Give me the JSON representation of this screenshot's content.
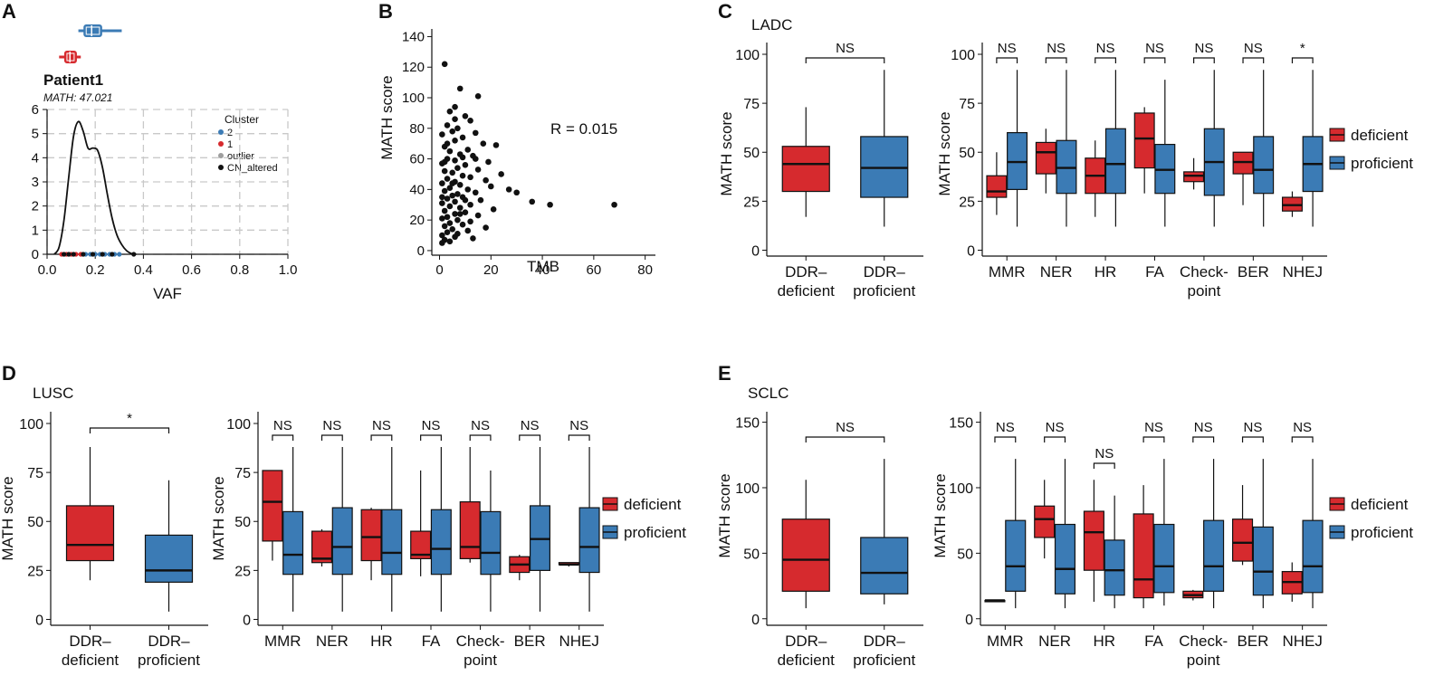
{
  "colors": {
    "deficient": "#d62a2e",
    "proficient": "#3b7bb5",
    "black": "#000000",
    "grid": "#c9c9c9",
    "outlier": "#9e9e9e"
  },
  "chart_data": [
    {
      "id": "A",
      "type": "line",
      "panel_label": "A",
      "title": "Patient1",
      "subtitle": "MATH: 47.021",
      "xlabel": "VAF",
      "ylabel": "",
      "xlim": [
        0,
        1
      ],
      "ylim": [
        0,
        6
      ],
      "xticks": [
        "0.0",
        "0.2",
        "0.4",
        "0.6",
        "0.8",
        "1.0"
      ],
      "yticks": [
        "0",
        "1",
        "2",
        "3",
        "4",
        "5",
        "6"
      ],
      "density": {
        "x": [
          0.03,
          0.05,
          0.07,
          0.09,
          0.11,
          0.13,
          0.15,
          0.17,
          0.19,
          0.21,
          0.23,
          0.25,
          0.27,
          0.29,
          0.31,
          0.33,
          0.35,
          0.37
        ],
        "y": [
          0.0,
          0.3,
          1.4,
          3.2,
          4.9,
          5.5,
          5.1,
          4.4,
          4.4,
          4.3,
          3.6,
          2.5,
          1.5,
          0.8,
          0.4,
          0.15,
          0.03,
          0.0
        ]
      },
      "vaf_points": {
        "cluster2": [
          0.16,
          0.18,
          0.2,
          0.22,
          0.24,
          0.26,
          0.28,
          0.3
        ],
        "cluster1": [
          0.06,
          0.08,
          0.1,
          0.12,
          0.14
        ],
        "cn_altered": [
          0.07,
          0.09,
          0.11,
          0.15,
          0.19,
          0.23,
          0.27,
          0.36
        ]
      },
      "cluster_boxes": [
        {
          "name": "2",
          "min": 0.13,
          "q1": 0.155,
          "median": 0.185,
          "q3": 0.225,
          "max": 0.31
        },
        {
          "name": "1",
          "min": 0.05,
          "q1": 0.075,
          "median": 0.095,
          "q3": 0.12,
          "max": 0.14
        }
      ],
      "legend": {
        "title": "Cluster",
        "entries": [
          "2",
          "1",
          "outlier",
          "CN_altered"
        ]
      }
    },
    {
      "id": "B",
      "type": "scatter",
      "panel_label": "B",
      "xlabel": "TMB",
      "ylabel": "MATH score",
      "xlim": [
        -3,
        84
      ],
      "ylim": [
        -3,
        145
      ],
      "xticks": [
        0,
        20,
        40,
        60,
        80
      ],
      "yticks": [
        0,
        20,
        40,
        60,
        80,
        100,
        120,
        140
      ],
      "annotation": "R = 0.015",
      "points": [
        [
          2,
          122
        ],
        [
          8,
          106
        ],
        [
          15,
          101
        ],
        [
          6,
          94
        ],
        [
          4,
          91
        ],
        [
          10,
          88
        ],
        [
          12,
          85
        ],
        [
          3,
          82
        ],
        [
          7,
          80
        ],
        [
          5,
          78
        ],
        [
          14,
          77
        ],
        [
          1,
          76
        ],
        [
          9,
          74
        ],
        [
          6,
          72
        ],
        [
          17,
          70
        ],
        [
          22,
          69
        ],
        [
          2,
          68
        ],
        [
          11,
          66
        ],
        [
          4,
          65
        ],
        [
          8,
          63
        ],
        [
          13,
          62
        ],
        [
          3,
          60
        ],
        [
          6,
          59
        ],
        [
          19,
          58
        ],
        [
          1,
          57
        ],
        [
          10,
          56
        ],
        [
          7,
          54
        ],
        [
          15,
          53
        ],
        [
          2,
          52
        ],
        [
          5,
          51
        ],
        [
          24,
          50
        ],
        [
          9,
          49
        ],
        [
          12,
          48
        ],
        [
          3,
          47
        ],
        [
          18,
          46
        ],
        [
          6,
          45
        ],
        [
          1,
          44
        ],
        [
          8,
          43
        ],
        [
          20,
          42
        ],
        [
          4,
          41
        ],
        [
          11,
          40
        ],
        [
          27,
          40
        ],
        [
          2,
          39
        ],
        [
          14,
          38
        ],
        [
          7,
          37
        ],
        [
          5,
          36
        ],
        [
          30,
          38
        ],
        [
          9,
          35
        ],
        [
          3,
          34
        ],
        [
          16,
          33
        ],
        [
          6,
          32
        ],
        [
          1,
          31
        ],
        [
          12,
          30
        ],
        [
          36,
          32
        ],
        [
          43,
          30
        ],
        [
          68,
          30
        ],
        [
          4,
          29
        ],
        [
          8,
          28
        ],
        [
          21,
          27
        ],
        [
          2,
          26
        ],
        [
          10,
          25
        ],
        [
          6,
          24
        ],
        [
          15,
          23
        ],
        [
          3,
          22
        ],
        [
          1,
          21
        ],
        [
          7,
          20
        ],
        [
          12,
          19
        ],
        [
          4,
          18
        ],
        [
          9,
          17
        ],
        [
          2,
          16
        ],
        [
          18,
          15
        ],
        [
          5,
          14
        ],
        [
          11,
          13
        ],
        [
          3,
          12
        ],
        [
          7,
          11
        ],
        [
          1,
          10
        ],
        [
          6,
          9
        ],
        [
          13,
          8
        ],
        [
          2,
          7
        ],
        [
          4,
          6
        ],
        [
          1,
          5
        ],
        [
          8,
          24
        ],
        [
          10,
          33
        ],
        [
          5,
          44
        ],
        [
          3,
          70
        ],
        [
          6,
          86
        ],
        [
          14,
          60
        ],
        [
          2,
          58
        ],
        [
          9,
          61
        ],
        [
          1,
          35
        ]
      ]
    },
    {
      "id": "C1",
      "type": "box",
      "panel_label": "C",
      "cohort": "LADC",
      "ylabel": "MATH score",
      "ylim": [
        -3,
        106
      ],
      "yticks": [
        0,
        25,
        50,
        75,
        100
      ],
      "categories": [
        "DDR–\ndeficient",
        "DDR–\nproficient"
      ],
      "boxes": [
        {
          "group": "deficient",
          "min": 17,
          "q1": 30,
          "median": 44,
          "q3": 53,
          "max": 73
        },
        {
          "group": "proficient",
          "min": 12,
          "q1": 27,
          "median": 42,
          "q3": 58,
          "max": 92
        }
      ],
      "sig": [
        "NS"
      ]
    },
    {
      "id": "C2",
      "type": "box",
      "ylabel": "MATH score",
      "ylim": [
        -3,
        106
      ],
      "yticks": [
        0,
        25,
        50,
        75,
        100
      ],
      "categories": [
        "MMR",
        "NER",
        "HR",
        "FA",
        "Check-\npoint",
        "BER",
        "NHEJ"
      ],
      "series": [
        {
          "name": "deficient",
          "boxes": [
            [
              18,
              27,
              30,
              38,
              50
            ],
            [
              29,
              39,
              50,
              55,
              62
            ],
            [
              17,
              29,
              38,
              47,
              56
            ],
            [
              29,
              42,
              57,
              70,
              73
            ],
            [
              31,
              35,
              38,
              40,
              47
            ],
            [
              23,
              39,
              45,
              50,
              50
            ],
            [
              17,
              20,
              23,
              27,
              30
            ]
          ]
        },
        {
          "name": "proficient",
          "boxes": [
            [
              12,
              31,
              45,
              60,
              92
            ],
            [
              12,
              29,
              42,
              56,
              92
            ],
            [
              12,
              29,
              44,
              62,
              92
            ],
            [
              12,
              29,
              41,
              54,
              87
            ],
            [
              12,
              28,
              45,
              62,
              92
            ],
            [
              12,
              29,
              41,
              58,
              92
            ],
            [
              12,
              30,
              44,
              58,
              92
            ]
          ]
        }
      ],
      "sig": [
        "NS",
        "NS",
        "NS",
        "NS",
        "NS",
        "NS",
        "*"
      ],
      "legend": [
        "deficient",
        "proficient"
      ]
    },
    {
      "id": "D1",
      "type": "box",
      "panel_label": "D",
      "cohort": "LUSC",
      "ylabel": "MATH score",
      "ylim": [
        -3,
        106
      ],
      "yticks": [
        0,
        25,
        50,
        75,
        100
      ],
      "categories": [
        "DDR–\ndeficient",
        "DDR–\nproficient"
      ],
      "boxes": [
        {
          "group": "deficient",
          "min": 20,
          "q1": 30,
          "median": 38,
          "q3": 58,
          "max": 88
        },
        {
          "group": "proficient",
          "min": 4,
          "q1": 19,
          "median": 25,
          "q3": 43,
          "max": 71
        }
      ],
      "sig": [
        "*"
      ]
    },
    {
      "id": "D2",
      "type": "box",
      "ylabel": "MATH score",
      "ylim": [
        -3,
        106
      ],
      "yticks": [
        0,
        25,
        50,
        75,
        100
      ],
      "categories": [
        "MMR",
        "NER",
        "HR",
        "FA",
        "Check-\npoint",
        "BER",
        "NHEJ"
      ],
      "series": [
        {
          "name": "deficient",
          "boxes": [
            [
              30,
              40,
              60,
              76,
              76
            ],
            [
              27,
              29,
              31,
              45,
              46
            ],
            [
              20,
              30,
              42,
              56,
              57
            ],
            [
              22,
              31,
              33,
              45,
              76
            ],
            [
              29,
              31,
              37,
              60,
              88
            ],
            [
              20,
              24,
              28,
              32,
              33
            ],
            [
              27,
              28,
              28,
              29,
              29
            ]
          ]
        },
        {
          "name": "proficient",
          "boxes": [
            [
              4,
              23,
              33,
              55,
              88
            ],
            [
              4,
              23,
              37,
              57,
              88
            ],
            [
              4,
              23,
              34,
              56,
              88
            ],
            [
              4,
              23,
              36,
              56,
              88
            ],
            [
              4,
              23,
              34,
              55,
              76
            ],
            [
              4,
              25,
              41,
              58,
              88
            ],
            [
              4,
              24,
              37,
              57,
              88
            ]
          ]
        }
      ],
      "sig": [
        "NS",
        "NS",
        "NS",
        "NS",
        "NS",
        "NS",
        "NS"
      ],
      "legend": [
        "deficient",
        "proficient"
      ]
    },
    {
      "id": "E1",
      "type": "box",
      "panel_label": "E",
      "cohort": "SCLC",
      "ylabel": "MATH score",
      "ylim": [
        -5,
        158
      ],
      "yticks": [
        0,
        50,
        100,
        150
      ],
      "categories": [
        "DDR–\ndeficient",
        "DDR–\nproficient"
      ],
      "boxes": [
        {
          "group": "deficient",
          "min": 8,
          "q1": 21,
          "median": 45,
          "q3": 76,
          "max": 106
        },
        {
          "group": "proficient",
          "min": 11,
          "q1": 19,
          "median": 35,
          "q3": 62,
          "max": 122
        }
      ],
      "sig": [
        "NS"
      ]
    },
    {
      "id": "E2",
      "type": "box",
      "ylabel": "MATH score",
      "ylim": [
        -5,
        158
      ],
      "yticks": [
        0,
        50,
        100,
        150
      ],
      "categories": [
        "MMR",
        "NER",
        "HR",
        "FA",
        "Check-\npoint",
        "BER",
        "NHEJ"
      ],
      "series": [
        {
          "name": "deficient",
          "boxes": [
            [
              14,
              14,
              14,
              14,
              14
            ],
            [
              46,
              62,
              76,
              86,
              106
            ],
            [
              13,
              37,
              66,
              82,
              106
            ],
            [
              8,
              16,
              30,
              80,
              102
            ],
            [
              14,
              16,
              18,
              21,
              22
            ],
            [
              41,
              44,
              58,
              76,
              102
            ],
            [
              13,
              19,
              28,
              36,
              43
            ]
          ]
        },
        {
          "name": "proficient",
          "boxes": [
            [
              8,
              21,
              40,
              75,
              122
            ],
            [
              8,
              19,
              38,
              72,
              122
            ],
            [
              8,
              18,
              37,
              60,
              94
            ],
            [
              10,
              20,
              40,
              72,
              122
            ],
            [
              8,
              21,
              40,
              75,
              122
            ],
            [
              8,
              18,
              36,
              70,
              122
            ],
            [
              8,
              20,
              40,
              75,
              122
            ]
          ]
        }
      ],
      "sig": [
        "NS",
        "NS",
        "NS",
        "NS",
        "NS",
        "NS",
        "NS"
      ],
      "legend": [
        "deficient",
        "proficient"
      ]
    }
  ]
}
